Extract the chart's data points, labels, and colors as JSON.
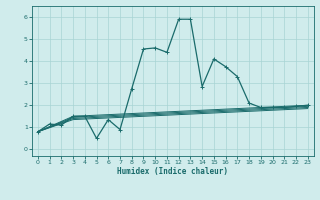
{
  "title": "",
  "xlabel": "Humidex (Indice chaleur)",
  "xlim": [
    -0.5,
    23.5
  ],
  "ylim": [
    -0.3,
    6.5
  ],
  "xticks": [
    0,
    1,
    2,
    3,
    4,
    5,
    6,
    7,
    8,
    9,
    10,
    11,
    12,
    13,
    14,
    15,
    16,
    17,
    18,
    19,
    20,
    21,
    22,
    23
  ],
  "yticks": [
    0,
    1,
    2,
    3,
    4,
    5,
    6
  ],
  "bg_color": "#d0ecec",
  "grid_color": "#a8d4d4",
  "line_color": "#1a6b6b",
  "series": [
    {
      "x": [
        0,
        1,
        2,
        3,
        4,
        5,
        6,
        7,
        8,
        9,
        10,
        11,
        12,
        13,
        14,
        15,
        16,
        17,
        18,
        19,
        20,
        21,
        22,
        23
      ],
      "y": [
        0.8,
        1.15,
        1.1,
        1.5,
        1.5,
        0.5,
        1.35,
        0.9,
        2.75,
        4.55,
        4.6,
        4.4,
        5.9,
        5.9,
        2.85,
        4.1,
        3.75,
        3.3,
        2.1,
        1.9,
        1.9,
        1.9,
        1.95,
        2.0
      ],
      "marker": true,
      "lw": 0.9
    },
    {
      "x": [
        0,
        3,
        23
      ],
      "y": [
        0.8,
        1.5,
        2.0
      ],
      "marker": false,
      "lw": 0.7
    },
    {
      "x": [
        0,
        3,
        23
      ],
      "y": [
        0.8,
        1.45,
        1.95
      ],
      "marker": false,
      "lw": 0.7
    },
    {
      "x": [
        0,
        3,
        23
      ],
      "y": [
        0.8,
        1.4,
        1.9
      ],
      "marker": false,
      "lw": 0.7
    },
    {
      "x": [
        0,
        3,
        23
      ],
      "y": [
        0.8,
        1.35,
        1.85
      ],
      "marker": false,
      "lw": 0.7
    }
  ]
}
